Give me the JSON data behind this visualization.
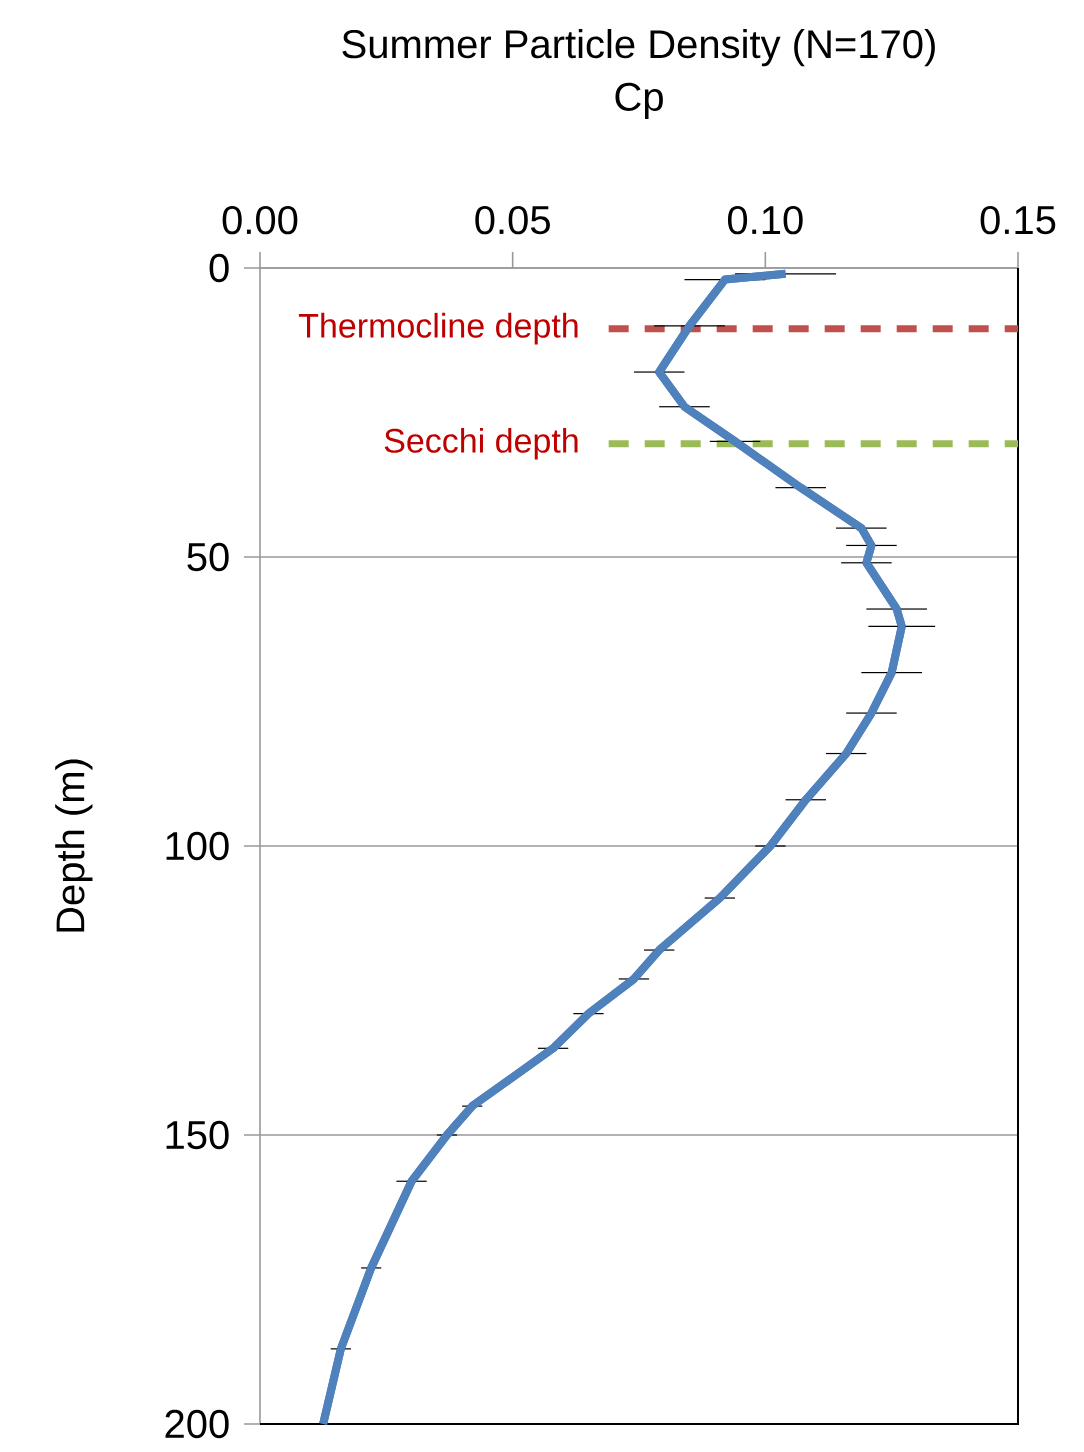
{
  "chart_data": {
    "type": "line",
    "title": "Summer Particle Density (N=170)",
    "xlabel": "Cp",
    "ylabel": "Depth (m)",
    "xlim": [
      0,
      0.15
    ],
    "ylim": [
      200,
      0
    ],
    "xticks": [
      {
        "value": 0,
        "label": "0.00"
      },
      {
        "value": 0.05,
        "label": "0.05"
      },
      {
        "value": 0.1,
        "label": "0.10"
      },
      {
        "value": 0.15,
        "label": "0.15"
      }
    ],
    "yticks": [
      0,
      50,
      100,
      150,
      200
    ],
    "grid": "y",
    "series": [
      {
        "color": "#4f81bd",
        "x": [
          0.104,
          0.092,
          0.085,
          0.079,
          0.084,
          0.094,
          0.107,
          0.119,
          0.121,
          0.12,
          0.126,
          0.127,
          0.125,
          0.121,
          0.116,
          0.108,
          0.101,
          0.091,
          0.079,
          0.074,
          0.065,
          0.058,
          0.042,
          0.037,
          0.03,
          0.022,
          0.016,
          0.0125
        ],
        "values": [
          1,
          2,
          10,
          18,
          24,
          30,
          38,
          45,
          48,
          51,
          59,
          62,
          70,
          77,
          84,
          92,
          100,
          109,
          118,
          123,
          129,
          135,
          145,
          150,
          158,
          173,
          187,
          200
        ],
        "xerrors": [
          0.01,
          0.008,
          0.007,
          0.005,
          0.005,
          0.005,
          0.005,
          0.005,
          0.005,
          0.005,
          0.006,
          0.0066,
          0.006,
          0.005,
          0.004,
          0.004,
          0.003,
          0.003,
          0.003,
          0.003,
          0.003,
          0.003,
          0.002,
          0.002,
          0.003,
          0.002,
          0.002,
          0.002
        ]
      }
    ],
    "ref_lines": [
      {
        "axis": "y",
        "value": 10.5,
        "label": "Thermocline depth",
        "color": "#c0504d",
        "line_style": "dashed"
      },
      {
        "axis": "y",
        "value": 30.4,
        "label": "Secchi depth",
        "color": "#9bbb59",
        "line_style": "dashed"
      }
    ]
  }
}
